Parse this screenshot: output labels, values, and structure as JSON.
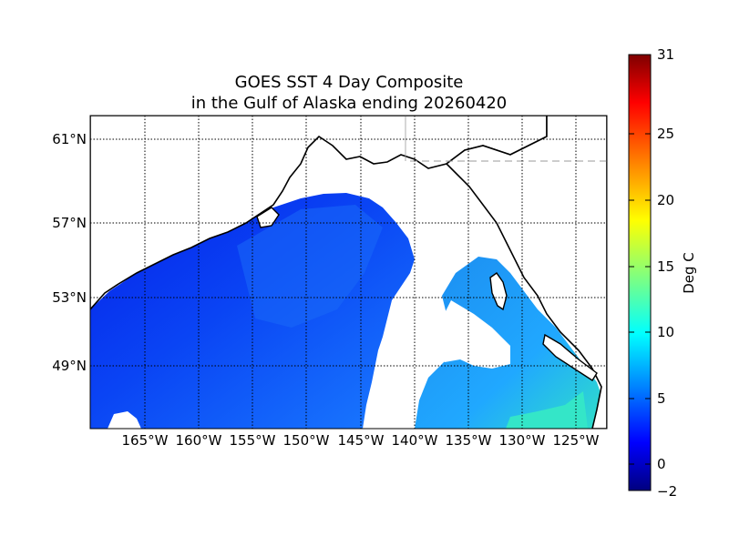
{
  "title": {
    "line1": "GOES SST 4 Day Composite",
    "line2": "in the Gulf of Alaska ending 20260420"
  },
  "map": {
    "latitude_labels": [
      "61°N",
      "57°N",
      "53°N",
      "49°N"
    ],
    "longitude_labels": [
      "165°W",
      "160°W",
      "155°W",
      "150°W",
      "145°W",
      "140°W",
      "135°W",
      "130°W",
      "125°W"
    ],
    "grid": "dotted"
  },
  "colorbar": {
    "label": "Deg C",
    "ticks": [
      "31",
      "25",
      "20",
      "15",
      "10",
      "5",
      "0",
      "−2"
    ],
    "min": -2,
    "max": 31,
    "colormap": "jet"
  },
  "colors": {
    "cold_water": "#0a3cf0",
    "mid_water": "#2a8cff",
    "warm_water": "#2ad8d0",
    "land": "#ffffff",
    "coastline": "#000000"
  }
}
